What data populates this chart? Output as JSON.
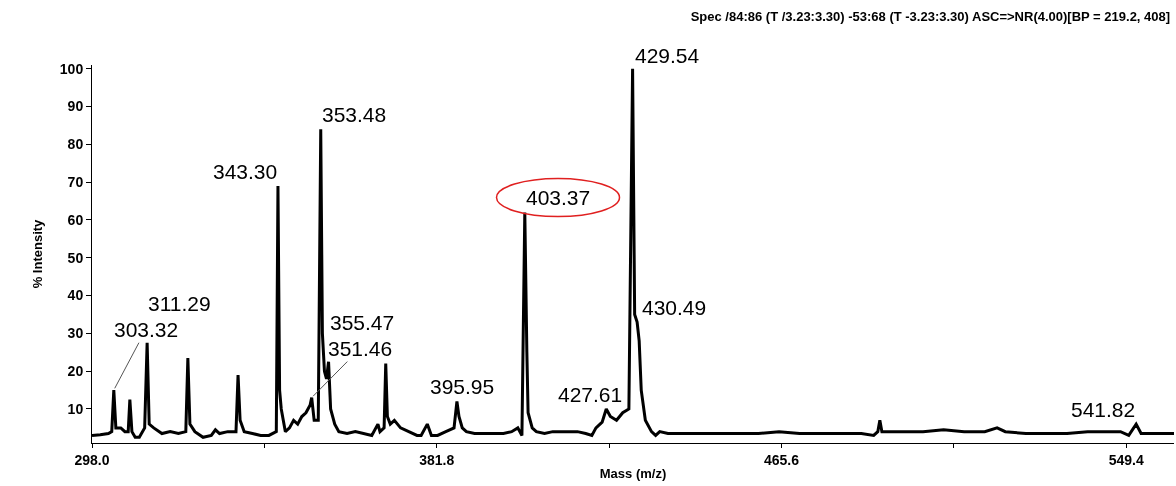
{
  "chart_data": {
    "type": "line",
    "title": "Spec /84:86 (T /3.23:3.30) -53:68 (T -3.23:3.30) ASC=>NR(4.00)[BP = 219.2, 408]",
    "xlabel": "Mass (m/z)",
    "ylabel": "% Intensity",
    "x": [
      298,
      300,
      302,
      302.8,
      303.3,
      303.8,
      305,
      306,
      306.8,
      307.2,
      307.7,
      308.5,
      309.5,
      310.8,
      311.4,
      311.9,
      313,
      315,
      317,
      319,
      320.8,
      321.3,
      321.8,
      323,
      325,
      327,
      328,
      329,
      331,
      333,
      333.5,
      334,
      335,
      337,
      339,
      341,
      342.8,
      343.2,
      343.6,
      344,
      345,
      346,
      347,
      348,
      349,
      350,
      351,
      351.4,
      352,
      353,
      353.6,
      354,
      354.5,
      355,
      355.5,
      356,
      357,
      358,
      360,
      362,
      364,
      366,
      367.5,
      368,
      369,
      369.4,
      369.8,
      370.5,
      371.5,
      373,
      375,
      377,
      378,
      379.5,
      380.5,
      382,
      384,
      386,
      386.7,
      387.2,
      388,
      389,
      391,
      394,
      396,
      398,
      400,
      401.5,
      402.5,
      403.2,
      403.7,
      404,
      405,
      406,
      408,
      410,
      413,
      416,
      418,
      419.5,
      420.5,
      422,
      423,
      424,
      425.5,
      427,
      428.5,
      429,
      429.4,
      429.9,
      430.5,
      431,
      431.5,
      432.5,
      434,
      435,
      436,
      438,
      441,
      445,
      450,
      455,
      460,
      465,
      470,
      475,
      480,
      485,
      488,
      489,
      489.5,
      490,
      495,
      500,
      505,
      510,
      515,
      518,
      520,
      525,
      530,
      535,
      540,
      545,
      548,
      550,
      551.8,
      553,
      556,
      561
    ],
    "series": [
      {
        "color": "#000000",
        "values": [
          3,
          3.2,
          3.5,
          4,
          15,
          5,
          5,
          4,
          4,
          12.5,
          4,
          2.5,
          2.5,
          5,
          27.5,
          6,
          5,
          3.5,
          4,
          3.5,
          4,
          23.5,
          6,
          4,
          2.5,
          3,
          4.5,
          3.5,
          4,
          4,
          19,
          7,
          4,
          3.5,
          3,
          3,
          4,
          69,
          15,
          10,
          4,
          5,
          7,
          6,
          8,
          9,
          11,
          13,
          7,
          7,
          84,
          30,
          20,
          18,
          22.5,
          10,
          6,
          4,
          3.5,
          4,
          3.5,
          3,
          6,
          4,
          5,
          22,
          8,
          6,
          7,
          5,
          4,
          3,
          3,
          6,
          3,
          3,
          4,
          5,
          12,
          8,
          5,
          4,
          3.5,
          3.5,
          3.5,
          3.5,
          4,
          5,
          3,
          62,
          25,
          9,
          5,
          4,
          3.5,
          4,
          4,
          4,
          3.5,
          3,
          5,
          6.5,
          10,
          8,
          7,
          9,
          10,
          60,
          100,
          35,
          33,
          28,
          15,
          7,
          4,
          3,
          4,
          3.5,
          3.5,
          3.5,
          3.5,
          3.5,
          3.5,
          4,
          3.5,
          3.5,
          3.5,
          3.5,
          3,
          4,
          7,
          4,
          4,
          4,
          4.5,
          4,
          4,
          5,
          4,
          3.5,
          3.5,
          3.5,
          4,
          4,
          4,
          3,
          6,
          3.5,
          3.5,
          3.5
        ]
      }
    ],
    "xlim": [
      298,
      561
    ],
    "ylim": [
      1,
      101
    ],
    "xticks": [
      {
        "value": 298,
        "label": "298.0"
      },
      {
        "value": 339.9,
        "label": null
      },
      381.8,
      {
        "value": 423.7,
        "label": null
      },
      465.6,
      {
        "value": 507.5,
        "label": null
      },
      549.4
    ],
    "yticks": [
      10,
      20,
      30,
      40,
      50,
      60,
      70,
      80,
      90,
      100
    ],
    "grid": false,
    "marker": "none",
    "line_style": "solid",
    "annotations": [
      {
        "text": "303.32",
        "x": 303.3,
        "y": 15
      },
      {
        "text": "311.29",
        "x": 311.4,
        "y": 27.5
      },
      {
        "text": "343.30",
        "x": 343.2,
        "y": 69
      },
      {
        "text": "351.46",
        "x": 351.4,
        "y": 13
      },
      {
        "text": "353.48",
        "x": 353.6,
        "y": 84
      },
      {
        "text": "355.47",
        "x": 355.5,
        "y": 22.5
      },
      {
        "text": "395.95",
        "x": 396,
        "y": 3.5
      },
      {
        "text": "403.37",
        "x": 403.2,
        "y": 62
      },
      {
        "text": "427.61",
        "x": 427,
        "y": 9
      },
      {
        "text": "429.54",
        "x": 429.4,
        "y": 100
      },
      {
        "text": "430.49",
        "x": 430.5,
        "y": 33
      },
      {
        "text": "541.82",
        "x": 551.8,
        "y": 6
      }
    ]
  }
}
